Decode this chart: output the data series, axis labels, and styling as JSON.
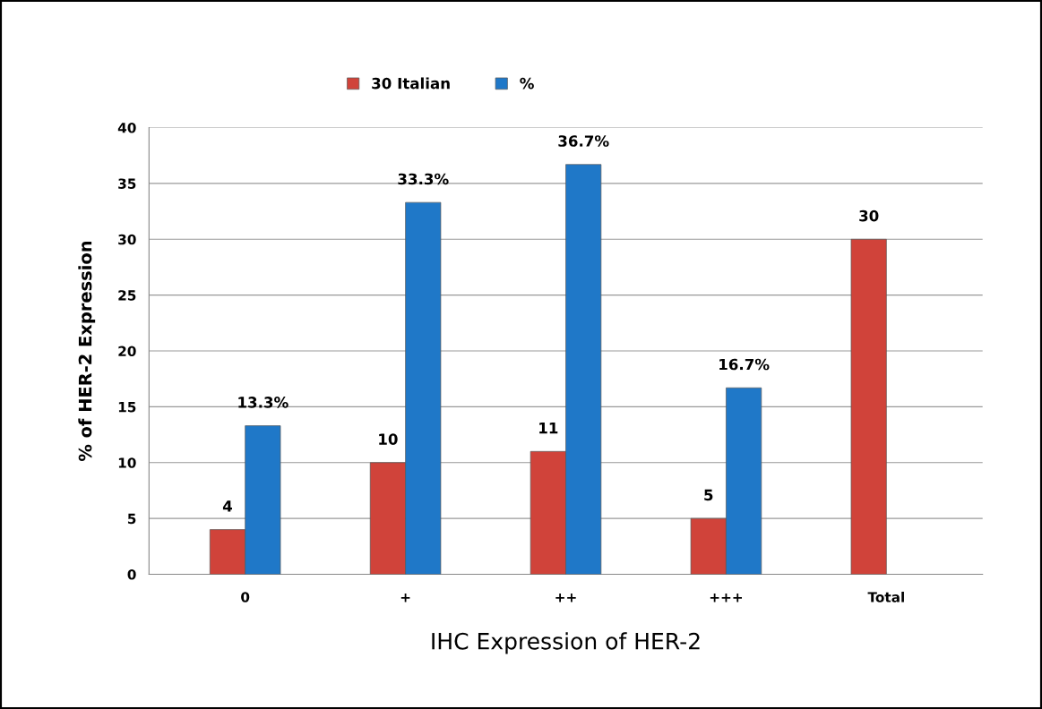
{
  "chart_data": {
    "type": "bar",
    "xlabel": "IHC Expression of HER-2",
    "ylabel": "% of HER-2 Expression",
    "categories": [
      "0",
      "+",
      "++",
      "+++",
      "Total"
    ],
    "series": [
      {
        "name": "30 Italian",
        "color": "#d0433a",
        "values": [
          4,
          10,
          11,
          5,
          30
        ],
        "data_labels": true
      },
      {
        "name": "%",
        "color": "#1f78c8",
        "values": [
          13.3,
          33.3,
          36.7,
          16.7,
          null
        ],
        "value_labels": [
          "13.3%",
          "33.3%",
          "36.7%",
          "16.7%",
          null
        ]
      }
    ],
    "ylim": [
      0,
      40
    ],
    "yticks": [
      0,
      5,
      10,
      15,
      20,
      25,
      30,
      35,
      40
    ],
    "grid": "y",
    "legend": "top"
  }
}
